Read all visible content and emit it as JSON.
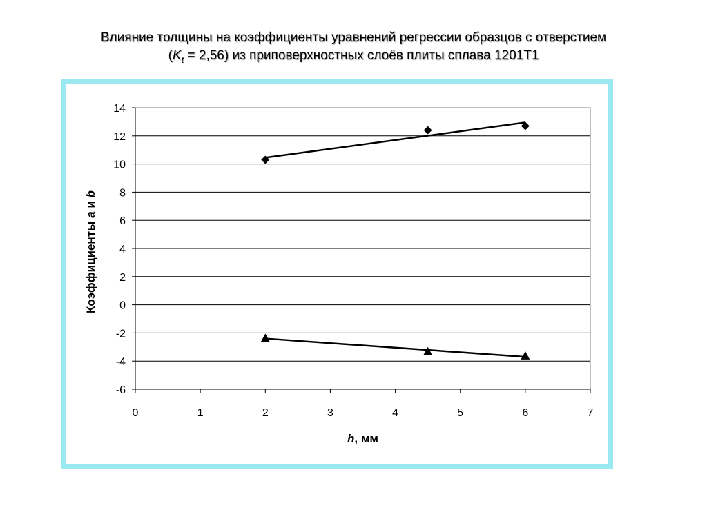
{
  "title": {
    "line1": "Влияние толщины на коэффициенты уравнений регрессии образцов с отверстием",
    "line2_open": "(",
    "line2_k": "K",
    "line2_sub": "t",
    "line2_rest": " = 2,56) из приповерхностных слоёв плиты сплава 1201Т1"
  },
  "chart_data": {
    "type": "scatter",
    "xlabel_var": "h",
    "xlabel_unit": ", мм",
    "ylabel_prefix": "Коэффициенты ",
    "ylabel_a": "a",
    "ylabel_mid": " и ",
    "ylabel_b": "b",
    "xlim": [
      0,
      7
    ],
    "ylim": [
      -6,
      14
    ],
    "xticks": [
      0,
      1,
      2,
      3,
      4,
      5,
      6,
      7
    ],
    "yticks": [
      -6,
      -4,
      -2,
      0,
      2,
      4,
      6,
      8,
      10,
      12,
      14
    ],
    "grid": "horizontal",
    "series": [
      {
        "marker": "diamond",
        "x": [
          2,
          4.5,
          6
        ],
        "y": [
          10.3,
          12.4,
          12.7
        ],
        "trendline": [
          [
            2,
            10.45
          ],
          [
            6,
            12.95
          ]
        ]
      },
      {
        "marker": "triangle",
        "x": [
          2,
          4.5,
          6
        ],
        "y": [
          -2.4,
          -3.35,
          -3.65
        ],
        "trendline": [
          [
            2,
            -2.4
          ],
          [
            6,
            -3.7
          ]
        ]
      }
    ],
    "color": "#000000"
  }
}
